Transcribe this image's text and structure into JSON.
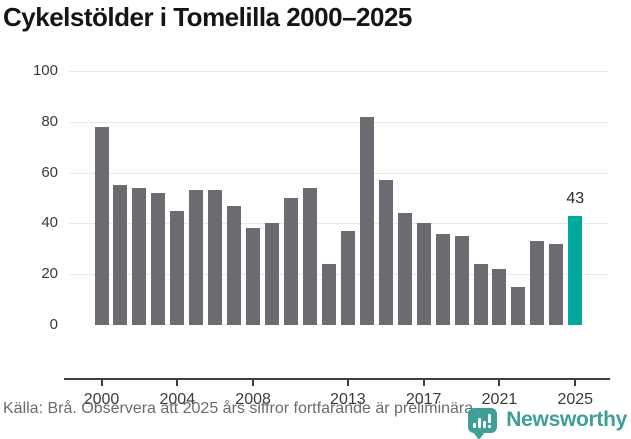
{
  "title": "Cykelstölder i Tomelilla 2000–2025",
  "chart_data": {
    "type": "bar",
    "title": "Cykelstölder i Tomelilla 2000–2025",
    "x": [
      2000,
      2001,
      2002,
      2003,
      2004,
      2005,
      2006,
      2007,
      2008,
      2009,
      2010,
      2011,
      2012,
      2013,
      2014,
      2015,
      2016,
      2017,
      2018,
      2019,
      2020,
      2021,
      2022,
      2023,
      2024,
      2025
    ],
    "values": [
      78,
      55,
      54,
      52,
      45,
      53,
      53,
      47,
      38,
      40,
      50,
      54,
      24,
      37,
      82,
      57,
      44,
      40,
      36,
      35,
      24,
      22,
      15,
      33,
      32,
      43
    ],
    "highlight": {
      "year": 2025,
      "value": 43,
      "label": "43"
    },
    "ylim": [
      0,
      100
    ],
    "yticks": [
      0,
      20,
      40,
      60,
      80,
      100
    ],
    "xticks": [
      2000,
      2004,
      2008,
      2013,
      2017,
      2021,
      2025
    ],
    "grid": true,
    "legend": false,
    "colors": {
      "bar": "#6e6a71",
      "highlight": "#00a79b",
      "grid": "#e8e8e8",
      "axis": "#3f3f3f",
      "tick_label": "#3a3a3a"
    }
  },
  "footer": {
    "source_text": "Källa: Brå. Observera att 2025 års siffror fortfarande är preliminära."
  },
  "branding": {
    "name": "Newsworthy",
    "color": "#3f9e96",
    "logo_icon": "speech-bubble-bar-chart-exclamation"
  }
}
